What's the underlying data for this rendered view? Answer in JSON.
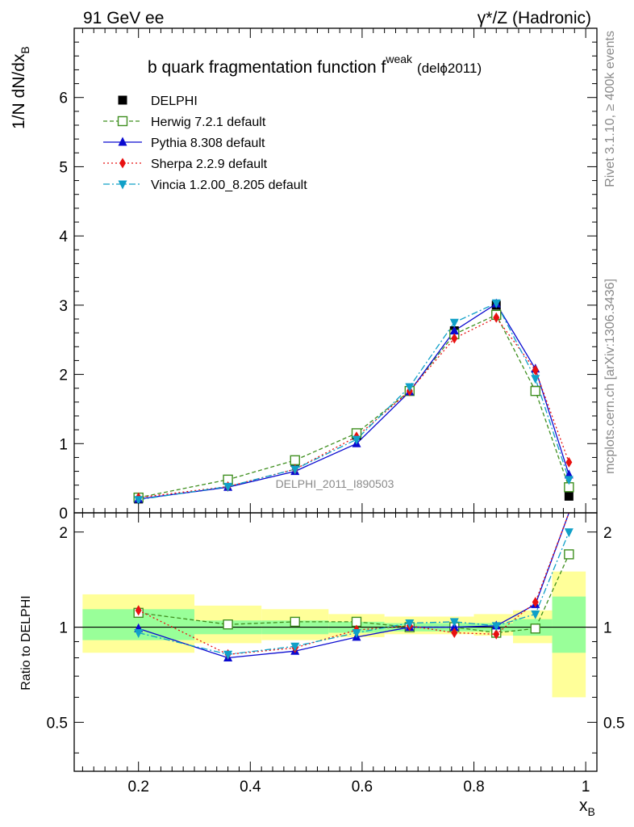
{
  "header": {
    "left_label": "91 GeV ee",
    "right_label": "γ*/Z (Hadronic)"
  },
  "side_text": {
    "rivet": "Rivet 3.1.10, ≥ 400k events",
    "mcplots": "mcplots.cern.ch [arXiv:1306.3436]"
  },
  "watermark": "DELPHI_2011_I890503",
  "chart_data": [
    {
      "type": "line",
      "title": "b quark fragmentation function f",
      "title_superscript": "weak",
      "title_suffix": "(delϕ2011)",
      "xlabel": "x",
      "xlabel_subscript": "B",
      "ylabel": "1/N dN/dx",
      "ylabel_subscript": "B",
      "xlim": [
        0.085,
        1.02
      ],
      "ylim": [
        0,
        7
      ],
      "yticks": [
        0,
        1,
        2,
        3,
        4,
        5,
        6
      ],
      "ytick_labels": [
        "0",
        "1",
        "2",
        "3",
        "4",
        "5",
        "6"
      ],
      "legend_position": "top-left",
      "x": [
        0.2,
        0.36,
        0.48,
        0.59,
        0.685,
        0.765,
        0.84,
        0.91,
        0.97
      ],
      "data_series": {
        "name": "DELPHI",
        "values": [
          0.2,
          0.47,
          0.73,
          1.12,
          1.76,
          2.63,
          3.0,
          1.77,
          0.24
        ]
      },
      "series": [
        {
          "name": "Herwig 7.2.1 default",
          "color": "#3f8f1f",
          "dash": "5,3",
          "marker": "open-square",
          "values": [
            0.22,
            0.48,
            0.76,
            1.15,
            1.76,
            2.58,
            2.86,
            1.76,
            0.37
          ]
        },
        {
          "name": "Pythia 8.308 default",
          "color": "#0a0ad0",
          "dash": "",
          "marker": "triangle-up",
          "values": [
            0.2,
            0.37,
            0.6,
            1.0,
            1.75,
            2.63,
            3.02,
            2.08,
            0.55
          ]
        },
        {
          "name": "Sherpa 2.2.9 default",
          "color": "#e81010",
          "dash": "2,3",
          "marker": "diamond",
          "values": [
            0.22,
            0.38,
            0.63,
            1.1,
            1.76,
            2.52,
            2.82,
            2.06,
            0.73
          ]
        },
        {
          "name": "Vincia 1.2.00_8.205 default",
          "color": "#10a0c8",
          "dash": "8,3,2,3",
          "marker": "triangle-down",
          "values": [
            0.19,
            0.38,
            0.63,
            1.06,
            1.82,
            2.75,
            3.03,
            1.94,
            0.48
          ]
        }
      ]
    },
    {
      "type": "line",
      "ylabel": "Ratio to DELPHI",
      "xlim": [
        0.085,
        1.02
      ],
      "ylim": [
        0.35,
        2.3
      ],
      "ylog": true,
      "yticks": [
        0.5,
        1,
        2
      ],
      "ytick_labels": [
        "0.5",
        "1",
        "2"
      ],
      "xticks": [
        0.2,
        0.4,
        0.6,
        0.8,
        1
      ],
      "xtick_labels": [
        "0.2",
        "0.4",
        "0.6",
        "0.8",
        "1"
      ],
      "x": [
        0.2,
        0.36,
        0.48,
        0.59,
        0.685,
        0.765,
        0.84,
        0.91,
        0.97
      ],
      "bins": [
        [
          0.1,
          0.3
        ],
        [
          0.3,
          0.42
        ],
        [
          0.42,
          0.54
        ],
        [
          0.54,
          0.64
        ],
        [
          0.64,
          0.73
        ],
        [
          0.73,
          0.8
        ],
        [
          0.8,
          0.87
        ],
        [
          0.87,
          0.94
        ],
        [
          0.94,
          1.0
        ]
      ],
      "band_inner": [
        [
          0.91,
          1.14
        ],
        [
          0.95,
          1.05
        ],
        [
          0.95,
          1.05
        ],
        [
          0.96,
          1.04
        ],
        [
          0.97,
          1.03
        ],
        [
          0.97,
          1.03
        ],
        [
          0.97,
          1.03
        ],
        [
          0.94,
          1.06
        ],
        [
          0.83,
          1.25
        ]
      ],
      "band_outer": [
        [
          0.83,
          1.27
        ],
        [
          0.89,
          1.17
        ],
        [
          0.91,
          1.14
        ],
        [
          0.93,
          1.1
        ],
        [
          0.95,
          1.08
        ],
        [
          0.95,
          1.08
        ],
        [
          0.94,
          1.1
        ],
        [
          0.89,
          1.13
        ],
        [
          0.6,
          1.5
        ]
      ],
      "series": [
        {
          "name": "Herwig 7.2.1 default",
          "values": [
            1.11,
            1.02,
            1.04,
            1.04,
            1.0,
            1.0,
            0.96,
            0.99,
            1.7
          ]
        },
        {
          "name": "Pythia 8.308 default",
          "values": [
            0.99,
            0.8,
            0.84,
            0.93,
            1.0,
            1.0,
            1.01,
            1.18,
            2.3
          ]
        },
        {
          "name": "Sherpa 2.2.9 default",
          "values": [
            1.13,
            0.82,
            0.86,
            0.98,
            1.01,
            0.96,
            0.95,
            1.2,
            2.3
          ]
        },
        {
          "name": "Vincia 1.2.00_8.205 default",
          "values": [
            0.96,
            0.82,
            0.87,
            0.96,
            1.03,
            1.04,
            1.01,
            1.1,
            2.0
          ]
        }
      ]
    }
  ]
}
